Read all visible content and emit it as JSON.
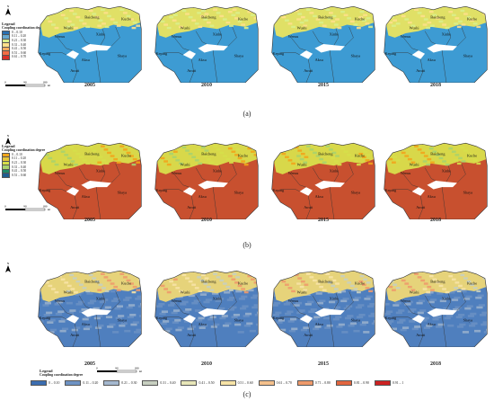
{
  "panels": [
    {
      "label": "(a)",
      "years": [
        "2005",
        "2010",
        "2015",
        "2018"
      ],
      "legend_title": "Legend",
      "legend_subtitle": "Coupling coordination degree",
      "classes": [
        {
          "range": "0 – 0.10",
          "color": "#2a6fb0"
        },
        {
          "range": "0.11 – 0.20",
          "color": "#67a9cf"
        },
        {
          "range": "0.21 – 0.30",
          "color": "#d9ef8b"
        },
        {
          "range": "0.31 – 0.40",
          "color": "#fee08b"
        },
        {
          "range": "0.41 – 0.50",
          "color": "#fdae61"
        },
        {
          "range": "0.51 – 0.60",
          "color": "#f46d43"
        },
        {
          "range": "0.61 – 0.70",
          "color": "#d73027"
        }
      ],
      "base_color": "#3d9bd3",
      "north_color": "#e0e066",
      "scale_labels": [
        "0",
        "90",
        "180"
      ],
      "scale_unit": "km"
    },
    {
      "label": "(b)",
      "years": [
        "2005",
        "2010",
        "2015",
        "2018"
      ],
      "legend_title": "Legend",
      "legend_subtitle": "Coupling coordination degree",
      "classes": [
        {
          "range": "0 – 0.10",
          "color": "#f2a51b"
        },
        {
          "range": "0.11 – 0.20",
          "color": "#e7c63a"
        },
        {
          "range": "0.21 – 0.30",
          "color": "#d6e04a"
        },
        {
          "range": "0.31 – 0.40",
          "color": "#a9d36d"
        },
        {
          "range": "0.41 – 0.50",
          "color": "#1e8b6a"
        },
        {
          "range": "0.51 – 0.60",
          "color": "#1f5d8f"
        }
      ],
      "base_color": "#c8502f",
      "north_color": "#d8d84a",
      "scale_labels": [
        "0",
        "90",
        "180"
      ],
      "scale_unit": "km"
    },
    {
      "label": "(c)",
      "years": [
        "2005",
        "2010",
        "2015",
        "2018"
      ],
      "legend_title": "Legend",
      "legend_subtitle": "Coupling coordination degree",
      "classes": [
        {
          "range": "0 – 0.10",
          "color": "#3b6db0"
        },
        {
          "range": "0.11 – 0.20",
          "color": "#6e93c4"
        },
        {
          "range": "0.21 – 0.30",
          "color": "#a4b8cf"
        },
        {
          "range": "0.31 – 0.40",
          "color": "#c7cfc0"
        },
        {
          "range": "0.41 – 0.50",
          "color": "#e7e6b8"
        },
        {
          "range": "0.51 – 0.60",
          "color": "#f7e3a6"
        },
        {
          "range": "0.61 – 0.70",
          "color": "#f4c08c"
        },
        {
          "range": "0.71 – 0.80",
          "color": "#ee9a6b"
        },
        {
          "range": "0.81 – 0.90",
          "color": "#e2663f"
        },
        {
          "range": "0.91 – 1",
          "color": "#cc2222"
        }
      ],
      "base_color": "#4f7fbe",
      "north_color": "#e6d37a",
      "scale_labels": [
        "0",
        "90",
        "180"
      ],
      "scale_unit": "km"
    }
  ],
  "place_names": [
    "Wushi",
    "Baicheng",
    "Kuche",
    "Wensu",
    "Xinhe",
    "Aksu",
    "Shaya",
    "Awati",
    "Keping"
  ],
  "north_symbol": "N"
}
